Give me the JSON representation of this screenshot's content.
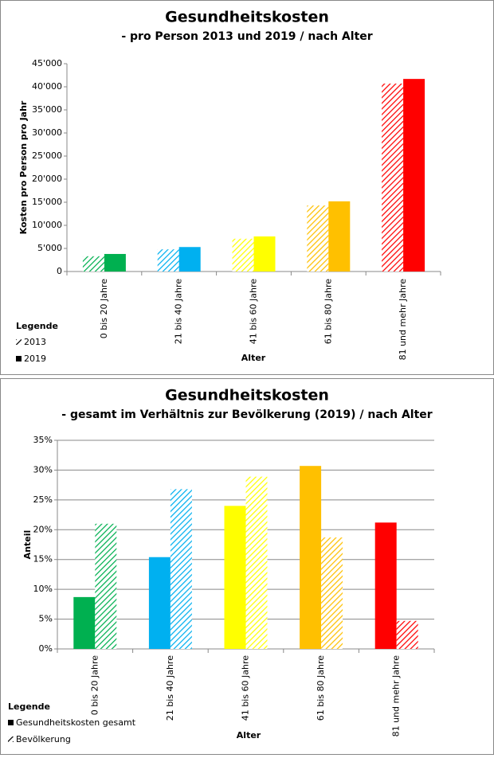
{
  "chart_data": [
    {
      "type": "bar",
      "title": "Gesundheitskosten",
      "subtitle": "- pro Person 2013 und 2019 / nach Alter",
      "ylabel": "Kosten pro Person pro Jahr",
      "xlabel": "Alter",
      "legend_title": "Legende",
      "categories": [
        "0 bis 20 Jahre",
        "21 bis 40 Jahre",
        "41 bis 60 Jahre",
        "61 bis 80 Jahre",
        "81 und mehr Jahre"
      ],
      "colors": [
        "#00b050",
        "#00b0f0",
        "#ffff00",
        "#ffc000",
        "#ff0000"
      ],
      "series": [
        {
          "name": "2013",
          "style": "hatched",
          "values": [
            3300,
            4800,
            7100,
            14300,
            40700
          ]
        },
        {
          "name": "2019",
          "style": "solid",
          "values": [
            3800,
            5300,
            7600,
            15200,
            41700
          ]
        }
      ],
      "ylim": [
        0,
        45000
      ],
      "yticks": [
        0,
        {
          "value": 5000,
          "label": "5'000"
        },
        {
          "value": 10000,
          "label": "10'000"
        },
        {
          "value": 15000,
          "label": "15'000"
        },
        {
          "value": 20000,
          "label": "20'000"
        },
        {
          "value": 25000,
          "label": "25'000"
        },
        {
          "value": 30000,
          "label": "30'000"
        },
        {
          "value": 35000,
          "label": "35'000"
        },
        {
          "value": 40000,
          "label": "40'000"
        },
        {
          "value": 45000,
          "label": "45'000"
        }
      ],
      "grid": false
    },
    {
      "type": "bar",
      "title": "Gesundheitskosten",
      "subtitle": "- gesamt im Verhältnis zur Bevölkerung (2019) / nach Alter",
      "ylabel": "Anteil",
      "xlabel": "Alter",
      "legend_title": "Legende",
      "categories": [
        "0 bis 20 Jahre",
        "21 bis 40 Jahre",
        "41 bis 60 Jahre",
        "61 bis 80 Jahre",
        "81 und mehr Jahre"
      ],
      "colors": [
        "#00b050",
        "#00b0f0",
        "#ffff00",
        "#ffc000",
        "#ff0000"
      ],
      "series": [
        {
          "name": "Gesundheitskosten gesamt",
          "style": "solid",
          "values": [
            8.7,
            15.4,
            24,
            30.7,
            21.2
          ]
        },
        {
          "name": "Bevölkerung",
          "style": "hatched",
          "values": [
            21,
            26.8,
            28.9,
            18.7,
            4.7
          ]
        }
      ],
      "ylim": [
        0,
        35
      ],
      "yticks": [
        {
          "value": 0,
          "label": "0%"
        },
        {
          "value": 5,
          "label": "5%"
        },
        {
          "value": 10,
          "label": "10%"
        },
        {
          "value": 15,
          "label": "15%"
        },
        {
          "value": 20,
          "label": "20%"
        },
        {
          "value": 25,
          "label": "25%"
        },
        {
          "value": 30,
          "label": "30%"
        },
        {
          "value": 35,
          "label": "35%"
        }
      ],
      "grid": true
    }
  ]
}
